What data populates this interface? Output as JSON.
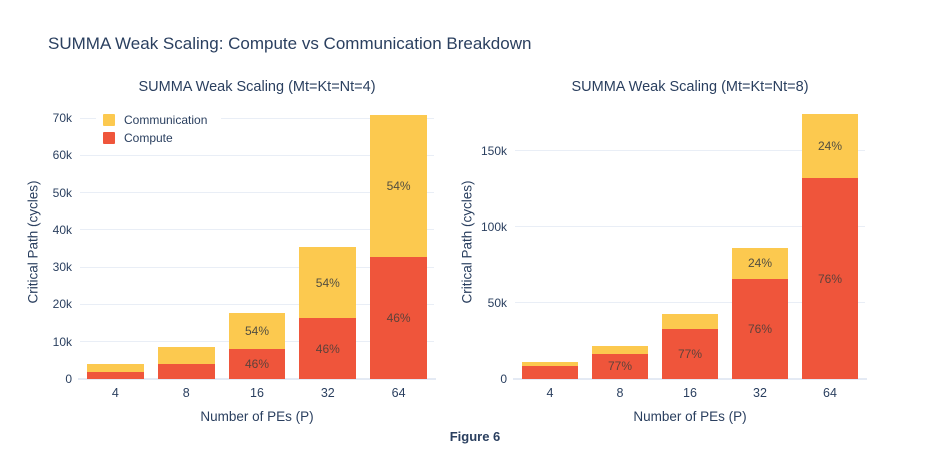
{
  "figure": {
    "title": "SUMMA Weak Scaling: Compute vs Communication Breakdown",
    "caption": "Figure 6"
  },
  "colors": {
    "compute": "#ef553b",
    "communication": "#fcc94f",
    "title_text": "#2a3f5f",
    "grid": "#e9eef6",
    "axis_line": "#e4eaf4"
  },
  "chart_data": [
    {
      "type": "bar",
      "stacked": true,
      "title": "SUMMA Weak Scaling (Mt=Kt=Nt=4)",
      "xlabel": "Number of PEs (P)",
      "ylabel": "Critical Path (cycles)",
      "categories": [
        "4",
        "8",
        "16",
        "32",
        "64"
      ],
      "series": [
        {
          "name": "Compute",
          "color": "#ef553b",
          "label_color": "#5e423a",
          "values": [
            1900,
            3900,
            8150,
            16300,
            32600
          ],
          "labels": [
            null,
            null,
            "46%",
            "46%",
            "46%"
          ]
        },
        {
          "name": "Communication",
          "color": "#fcc94f",
          "label_color": "#524e40",
          "values": [
            2200,
            4600,
            9550,
            19100,
            38200
          ],
          "labels": [
            null,
            null,
            "54%",
            "54%",
            "54%"
          ]
        }
      ],
      "ylim": [
        0,
        73500
      ],
      "yticks": [
        {
          "v": 0,
          "label": "0"
        },
        {
          "v": 10000,
          "label": "10k"
        },
        {
          "v": 20000,
          "label": "20k"
        },
        {
          "v": 30000,
          "label": "30k"
        },
        {
          "v": 40000,
          "label": "40k"
        },
        {
          "v": 50000,
          "label": "50k"
        },
        {
          "v": 60000,
          "label": "60k"
        },
        {
          "v": 70000,
          "label": "70k"
        }
      ],
      "grid": true,
      "legend": {
        "position": "inside-top-left",
        "items": [
          {
            "label": "Communication",
            "color": "#fcc94f"
          },
          {
            "label": "Compute",
            "color": "#ef553b"
          }
        ]
      }
    },
    {
      "type": "bar",
      "stacked": true,
      "title": "SUMMA Weak Scaling (Mt=Kt=Nt=8)",
      "xlabel": "Number of PEs (P)",
      "ylabel": "Critical Path (cycles)",
      "categories": [
        "4",
        "8",
        "16",
        "32",
        "64"
      ],
      "series": [
        {
          "name": "Compute",
          "color": "#ef553b",
          "label_color": "#5e423a",
          "values": [
            8400,
            16600,
            33000,
            65700,
            132000
          ],
          "labels": [
            null,
            "77%",
            "77%",
            "76%",
            "76%"
          ]
        },
        {
          "name": "Communication",
          "color": "#fcc94f",
          "label_color": "#524e40",
          "values": [
            2600,
            4900,
            10000,
            20700,
            42000
          ],
          "labels": [
            null,
            null,
            null,
            "24%",
            "24%"
          ]
        }
      ],
      "ylim": [
        0,
        180000
      ],
      "yticks": [
        {
          "v": 0,
          "label": "0"
        },
        {
          "v": 50000,
          "label": "50k"
        },
        {
          "v": 100000,
          "label": "100k"
        },
        {
          "v": 150000,
          "label": "150k"
        }
      ],
      "grid": true,
      "legend": null
    }
  ]
}
